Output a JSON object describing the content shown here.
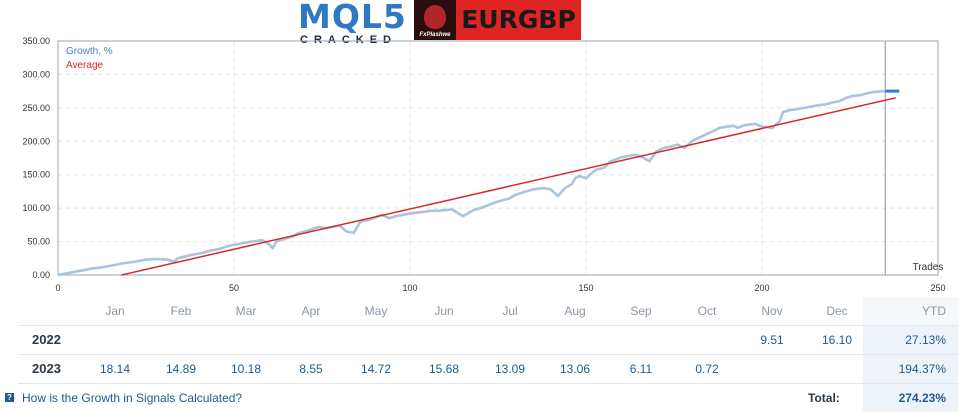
{
  "header": {
    "logo_main": "MQL5",
    "logo_sub": "CRACKED",
    "badge_text": "FxPlashwe",
    "pair": "EURGBP"
  },
  "chart_data": {
    "type": "line",
    "title": "",
    "xlabel": "Trades",
    "ylabel": "",
    "xlim": [
      0,
      250
    ],
    "ylim": [
      0,
      350
    ],
    "x_ticks": [
      0,
      50,
      100,
      150,
      200,
      250
    ],
    "y_ticks": [
      0,
      50,
      100,
      150,
      200,
      250,
      300,
      350
    ],
    "y_tick_labels": [
      "0.00",
      "50.00",
      "100.00",
      "150.00",
      "200.00",
      "250.00",
      "300.00",
      "350.00"
    ],
    "grid": true,
    "legend_position": "top-left",
    "current_marker_x": 235,
    "colors": {
      "growth": "#a9c4dc",
      "average": "#d62a2a",
      "last_segment": "#2d7fd6",
      "axis": "#9aa5b1",
      "grid": "#dde3e8"
    },
    "series": [
      {
        "name": "Growth, %",
        "x": [
          0,
          4,
          6,
          10,
          12,
          16,
          18,
          22,
          25,
          28,
          31,
          33,
          34,
          38,
          41,
          43,
          46,
          48,
          50,
          53,
          55,
          58,
          60,
          61,
          62,
          63,
          65,
          67,
          68,
          70,
          72,
          74,
          76,
          78,
          80,
          82,
          84,
          85,
          86,
          88,
          90,
          92,
          94,
          96,
          98,
          100,
          103,
          106,
          108,
          110,
          112,
          115,
          118,
          120,
          122,
          123,
          125,
          128,
          130,
          133,
          135,
          138,
          140,
          142,
          144,
          146,
          147,
          148,
          150,
          152,
          153,
          155,
          157,
          159,
          160,
          162,
          164,
          166,
          168,
          170,
          172,
          174,
          176,
          178,
          180,
          182,
          184,
          186,
          188,
          190,
          192,
          193,
          195,
          198,
          200,
          203,
          205,
          206,
          207,
          208,
          210,
          212,
          214,
          216,
          218,
          220,
          222,
          224,
          226,
          228,
          230,
          232,
          235
        ],
        "values": [
          0,
          4,
          6,
          10,
          11,
          15,
          17,
          20,
          23,
          24,
          23,
          20,
          25,
          30,
          33,
          36,
          39,
          43,
          45,
          48,
          50,
          52,
          46,
          40,
          50,
          52,
          55,
          58,
          62,
          65,
          68,
          72,
          70,
          72,
          74,
          65,
          63,
          72,
          80,
          82,
          86,
          90,
          85,
          88,
          90,
          92,
          94,
          96,
          96,
          97,
          98,
          88,
          97,
          100,
          104,
          106,
          110,
          114,
          120,
          125,
          128,
          130,
          128,
          118,
          130,
          136,
          145,
          148,
          145,
          154,
          158,
          160,
          170,
          174,
          176,
          178,
          180,
          176,
          170,
          185,
          190,
          192,
          195,
          190,
          200,
          205,
          210,
          215,
          220,
          222,
          223,
          220,
          224,
          226,
          222,
          220,
          230,
          244,
          245,
          247,
          248,
          250,
          252,
          254,
          255,
          258,
          260,
          265,
          268,
          269,
          272,
          274,
          275
        ]
      },
      {
        "name": "Average",
        "x": [
          18,
          238
        ],
        "values": [
          0,
          265
        ]
      }
    ]
  },
  "table": {
    "months": [
      "Jan",
      "Feb",
      "Mar",
      "Apr",
      "May",
      "Jun",
      "Jul",
      "Aug",
      "Sep",
      "Oct",
      "Nov",
      "Dec",
      "YTD"
    ],
    "rows": [
      {
        "year": "2022",
        "values": [
          "",
          "",
          "",
          "",
          "",
          "",
          "",
          "",
          "",
          "",
          "9.51",
          "16.10"
        ],
        "ytd": "27.13%"
      },
      {
        "year": "2023",
        "values": [
          "18.14",
          "14.89",
          "10.18",
          "8.55",
          "14.72",
          "15.68",
          "13.09",
          "13.06",
          "6.11",
          "0.72",
          "",
          ""
        ],
        "ytd": "194.37%"
      }
    ],
    "help_text": "How is the Growth in Signals Calculated?",
    "total_label": "Total:",
    "total_value": "274.23%"
  }
}
